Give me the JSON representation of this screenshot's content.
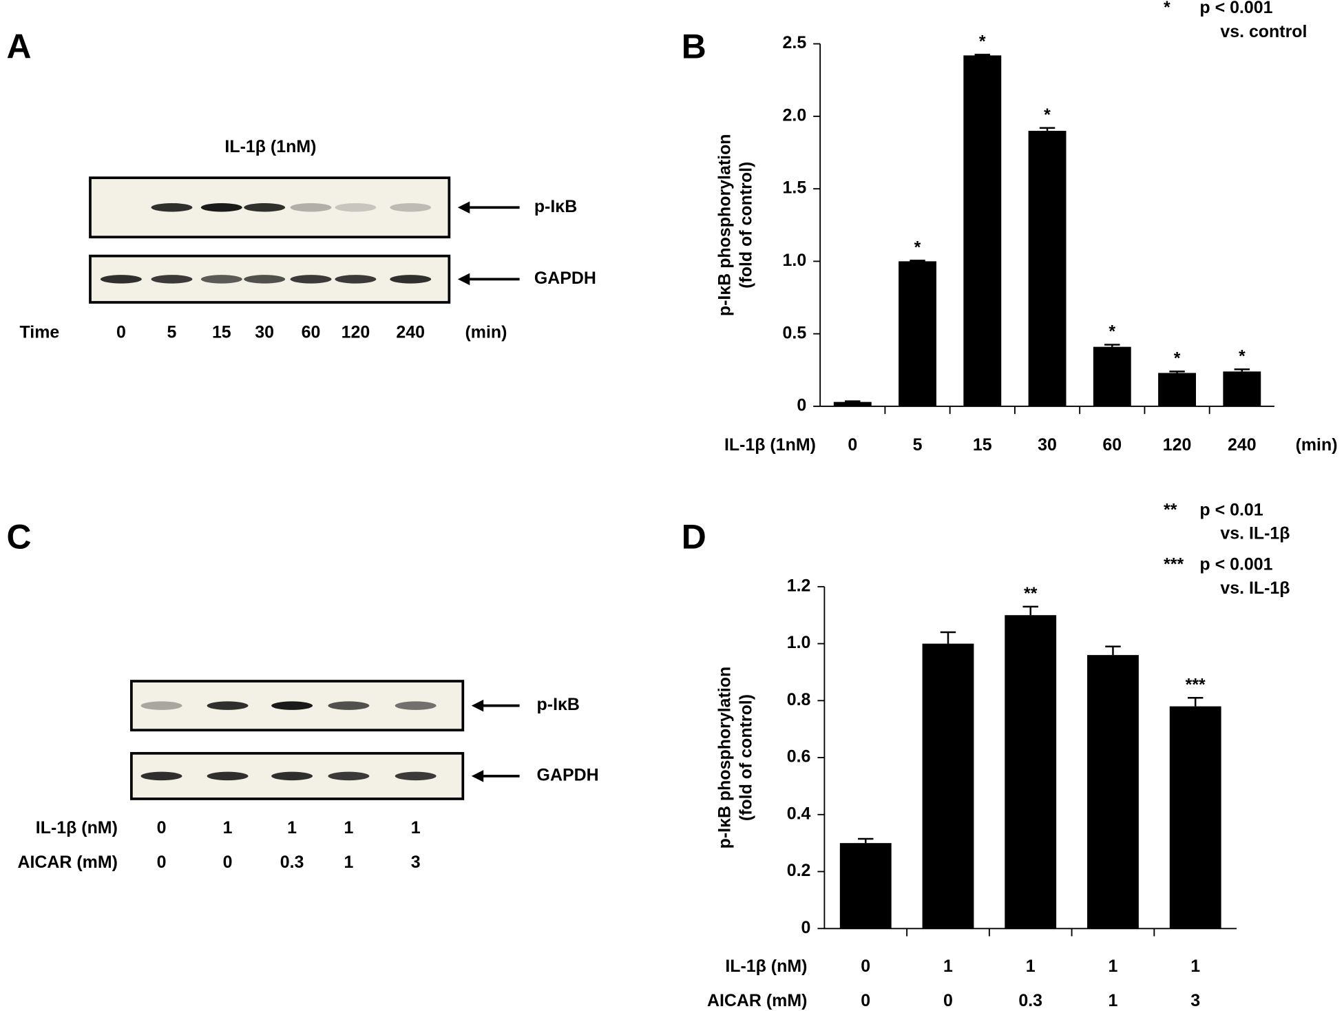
{
  "blots": [
    {
      "panel": "A",
      "title": "IL-1β (1nM)",
      "bands": [
        "p-IκB",
        "GAPDH"
      ],
      "lane_rows": [
        {
          "label": "Time",
          "values": [
            "0",
            "5",
            "15",
            "30",
            "60",
            "120",
            "240"
          ],
          "unit": "(min)"
        }
      ]
    },
    {
      "panel": "C",
      "bands": [
        "p-IκB",
        "GAPDH"
      ],
      "lane_rows": [
        {
          "label": "IL-1β (nM)",
          "values": [
            "0",
            "1",
            "1",
            "1",
            "1"
          ]
        },
        {
          "label": "AICAR (mM)",
          "values": [
            "0",
            "0",
            "0.3",
            "1",
            "3"
          ]
        }
      ]
    }
  ],
  "chart_data": [
    {
      "type": "bar",
      "panel": "B",
      "y_label": [
        "p-IκB phosphorylation",
        "(fold of control)"
      ],
      "ylim": [
        0,
        2.5
      ],
      "yticks": [
        0,
        0.5,
        {
          "value": 1,
          "label": "1.0"
        },
        1.5,
        {
          "value": 2,
          "label": "2.0"
        },
        2.5
      ],
      "category_rows": [
        {
          "label": "IL-1β (1nM)",
          "values": [
            "0",
            "5",
            "15",
            "30",
            "60",
            "120",
            "240"
          ]
        }
      ],
      "unit": "(min)",
      "values": [
        0.03,
        1.0,
        2.42,
        1.9,
        0.41,
        0.23,
        0.24
      ],
      "errors": [
        0.005,
        0.005,
        0.005,
        0.02,
        0.015,
        0.01,
        0.015
      ],
      "annotations": [
        null,
        "*",
        "*",
        "*",
        "*",
        "*",
        "*"
      ],
      "color": "#000000",
      "notes": [
        {
          "symbol": "*",
          "text": "p < 0.001",
          "detail": "vs. control"
        }
      ]
    },
    {
      "type": "bar",
      "panel": "D",
      "y_label": [
        "p-IκB phosphorylation",
        "(fold of control)"
      ],
      "ylim": [
        0,
        1.2
      ],
      "yticks": [
        0,
        0.2,
        0.4,
        0.6,
        0.8,
        {
          "value": 1,
          "label": "1.0"
        },
        1.2
      ],
      "category_rows": [
        {
          "label": "IL-1β (nM)",
          "values": [
            "0",
            "1",
            "1",
            "1",
            "1"
          ]
        },
        {
          "label": "AICAR (mM)",
          "values": [
            "0",
            "0",
            "0.3",
            "1",
            "3"
          ]
        }
      ],
      "values": [
        0.3,
        1.0,
        1.1,
        0.96,
        0.78
      ],
      "errors": [
        0.015,
        0.04,
        0.03,
        0.03,
        0.03
      ],
      "annotations": [
        null,
        null,
        "**",
        null,
        "***"
      ],
      "color": "#000000",
      "notes": [
        {
          "symbol": "**",
          "text": "p < 0.01",
          "detail": "vs. IL-1β"
        },
        {
          "symbol": "***",
          "text": "p < 0.001",
          "detail": "vs. IL-1β"
        }
      ]
    }
  ]
}
